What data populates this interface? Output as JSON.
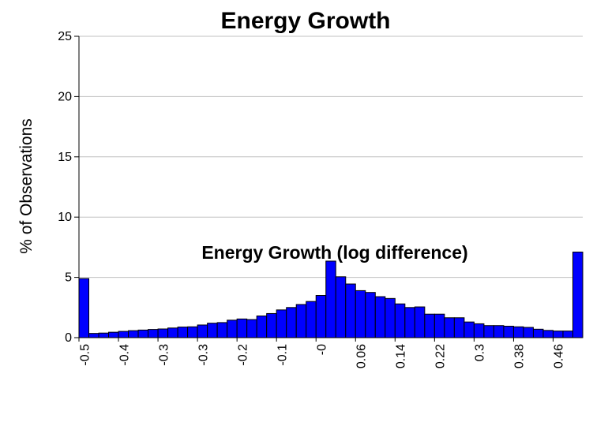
{
  "chart_data": {
    "type": "bar",
    "title": "Energy Growth",
    "xlabel": "Energy Growth (log difference)",
    "ylabel": "% of Observations",
    "ylim": [
      0,
      25
    ],
    "yticks": [
      "0",
      "5",
      "10",
      "15",
      "20",
      "25"
    ],
    "grid": true,
    "xtick_labels": [
      "-0.5",
      "-0.4",
      "-0.3",
      "-0.3",
      "-0.2",
      "-0.1",
      "-0",
      "0.06",
      "0.14",
      "0.22",
      "0.3",
      "0.38",
      "0.46"
    ],
    "xtick_every": 4,
    "bar_color": "#0000FF",
    "values": [
      4.9,
      0.35,
      0.38,
      0.45,
      0.52,
      0.58,
      0.63,
      0.68,
      0.72,
      0.8,
      0.88,
      0.9,
      1.05,
      1.2,
      1.25,
      1.45,
      1.55,
      1.5,
      1.8,
      2.0,
      2.3,
      2.5,
      2.75,
      3.0,
      3.5,
      6.35,
      5.05,
      4.45,
      3.9,
      3.75,
      3.4,
      3.25,
      2.8,
      2.5,
      2.55,
      1.95,
      1.95,
      1.65,
      1.65,
      1.3,
      1.15,
      1.0,
      1.0,
      0.95,
      0.9,
      0.85,
      0.7,
      0.6,
      0.55,
      0.55,
      7.1
    ]
  }
}
